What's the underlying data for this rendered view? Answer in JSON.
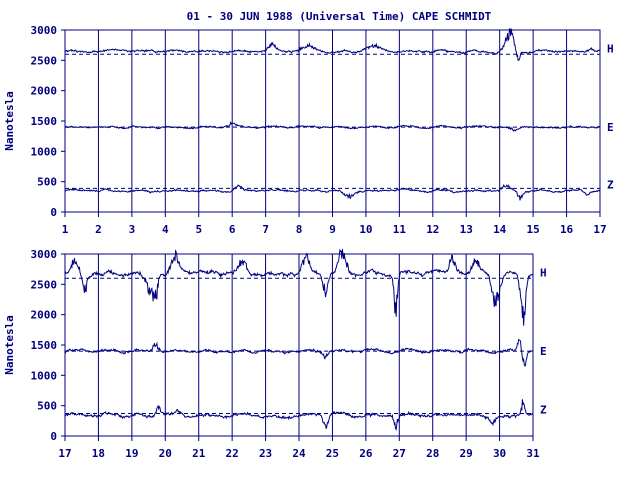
{
  "title": "01 - 30 JUN 1988 (Universal Time) CAPE SCHMIDT",
  "colors": {
    "ink": "#000080",
    "background": "#ffffff"
  },
  "chart_data": [
    {
      "type": "line",
      "ylabel": "Nanotesla",
      "ylim": [
        0,
        3000
      ],
      "yticks": [
        0,
        500,
        1000,
        1500,
        2000,
        2500,
        3000
      ],
      "xlim": [
        1,
        17
      ],
      "xticks": [
        1,
        2,
        3,
        4,
        5,
        6,
        7,
        8,
        9,
        10,
        11,
        12,
        13,
        14,
        15,
        16,
        17
      ],
      "grid": "vertical lines at each day",
      "series": [
        {
          "name": "H",
          "baseline": 2600,
          "level": 2650,
          "noise": 25,
          "disturbances": [
            {
              "day": 7.2,
              "amp": 90,
              "width": 0.15
            },
            {
              "day": 8.3,
              "amp": 70,
              "width": 0.3
            },
            {
              "day": 10.2,
              "amp": 60,
              "width": 0.3
            },
            {
              "day": 14.3,
              "amp": 300,
              "width": 0.2
            },
            {
              "day": 14.55,
              "amp": -180,
              "width": 0.08
            },
            {
              "day": 16.7,
              "amp": 50,
              "width": 0.1
            }
          ]
        },
        {
          "name": "E",
          "baseline": 1400,
          "level": 1400,
          "noise": 20,
          "disturbances": [
            {
              "day": 6.0,
              "amp": 60,
              "width": 0.15
            },
            {
              "day": 14.4,
              "amp": -60,
              "width": 0.15
            }
          ]
        },
        {
          "name": "Z",
          "baseline": 390,
          "level": 350,
          "noise": 22,
          "disturbances": [
            {
              "day": 6.2,
              "amp": 60,
              "width": 0.15
            },
            {
              "day": 9.5,
              "amp": -90,
              "width": 0.2
            },
            {
              "day": 14.2,
              "amp": 80,
              "width": 0.15
            },
            {
              "day": 14.6,
              "amp": -120,
              "width": 0.1
            },
            {
              "day": 16.6,
              "amp": -60,
              "width": 0.1
            }
          ]
        }
      ]
    },
    {
      "type": "line",
      "ylabel": "Nanotesla",
      "ylim": [
        0,
        3000
      ],
      "yticks": [
        0,
        500,
        1000,
        1500,
        2000,
        2500,
        3000
      ],
      "xlim": [
        17,
        31
      ],
      "xticks": [
        17,
        18,
        19,
        20,
        21,
        22,
        23,
        24,
        25,
        26,
        27,
        28,
        29,
        30,
        31
      ],
      "grid": "vertical lines at each day",
      "series": [
        {
          "name": "H",
          "baseline": 2600,
          "level": 2680,
          "noise": 45,
          "disturbances": [
            {
              "day": 17.3,
              "amp": 250,
              "width": 0.15
            },
            {
              "day": 17.6,
              "amp": -280,
              "width": 0.1
            },
            {
              "day": 19.5,
              "amp": -250,
              "width": 0.15
            },
            {
              "day": 19.7,
              "amp": -400,
              "width": 0.1
            },
            {
              "day": 20.3,
              "amp": 320,
              "width": 0.15
            },
            {
              "day": 22.3,
              "amp": 200,
              "width": 0.15
            },
            {
              "day": 24.2,
              "amp": 240,
              "width": 0.15
            },
            {
              "day": 24.8,
              "amp": -350,
              "width": 0.1
            },
            {
              "day": 25.3,
              "amp": 380,
              "width": 0.15
            },
            {
              "day": 26.9,
              "amp": -600,
              "width": 0.07
            },
            {
              "day": 28.6,
              "amp": 250,
              "width": 0.15
            },
            {
              "day": 29.3,
              "amp": 200,
              "width": 0.15
            },
            {
              "day": 29.9,
              "amp": -500,
              "width": 0.15
            },
            {
              "day": 30.7,
              "amp": -700,
              "width": 0.1
            }
          ]
        },
        {
          "name": "E",
          "baseline": 1400,
          "level": 1400,
          "noise": 30,
          "disturbances": [
            {
              "day": 19.7,
              "amp": 110,
              "width": 0.1
            },
            {
              "day": 24.8,
              "amp": -90,
              "width": 0.1
            },
            {
              "day": 30.6,
              "amp": 200,
              "width": 0.07
            },
            {
              "day": 30.75,
              "amp": -300,
              "width": 0.07
            }
          ]
        },
        {
          "name": "Z",
          "baseline": 370,
          "level": 340,
          "noise": 35,
          "disturbances": [
            {
              "day": 19.8,
              "amp": 140,
              "width": 0.1
            },
            {
              "day": 20.4,
              "amp": 70,
              "width": 0.1
            },
            {
              "day": 24.8,
              "amp": -180,
              "width": 0.1
            },
            {
              "day": 26.9,
              "amp": -200,
              "width": 0.08
            },
            {
              "day": 29.8,
              "amp": -150,
              "width": 0.1
            },
            {
              "day": 30.7,
              "amp": 250,
              "width": 0.07
            }
          ]
        }
      ]
    }
  ]
}
